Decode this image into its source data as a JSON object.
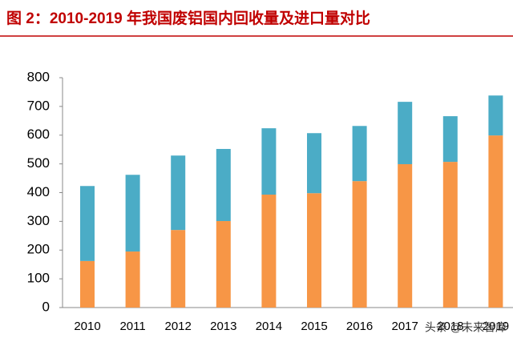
{
  "chart_data": {
    "type": "stacked_bar",
    "title": "图 2：2010-2019 年我国废铝国内回收量及进口量对比",
    "categories": [
      "2010",
      "2011",
      "2012",
      "2013",
      "2014",
      "2015",
      "2016",
      "2017",
      "2018",
      "2019"
    ],
    "series": [
      {
        "color": "#f79646",
        "values": [
          162,
          195,
          270,
          301,
          393,
          398,
          440,
          499,
          507,
          599
        ]
      },
      {
        "color": "#4bacc6",
        "values": [
          261,
          267,
          259,
          251,
          231,
          209,
          192,
          217,
          159,
          139
        ]
      }
    ],
    "ylim": [
      0,
      800
    ],
    "yticks": [
      0,
      100,
      200,
      300,
      400,
      500,
      600,
      700,
      800
    ],
    "grid": false,
    "watermark": "头条 @未来智库"
  }
}
